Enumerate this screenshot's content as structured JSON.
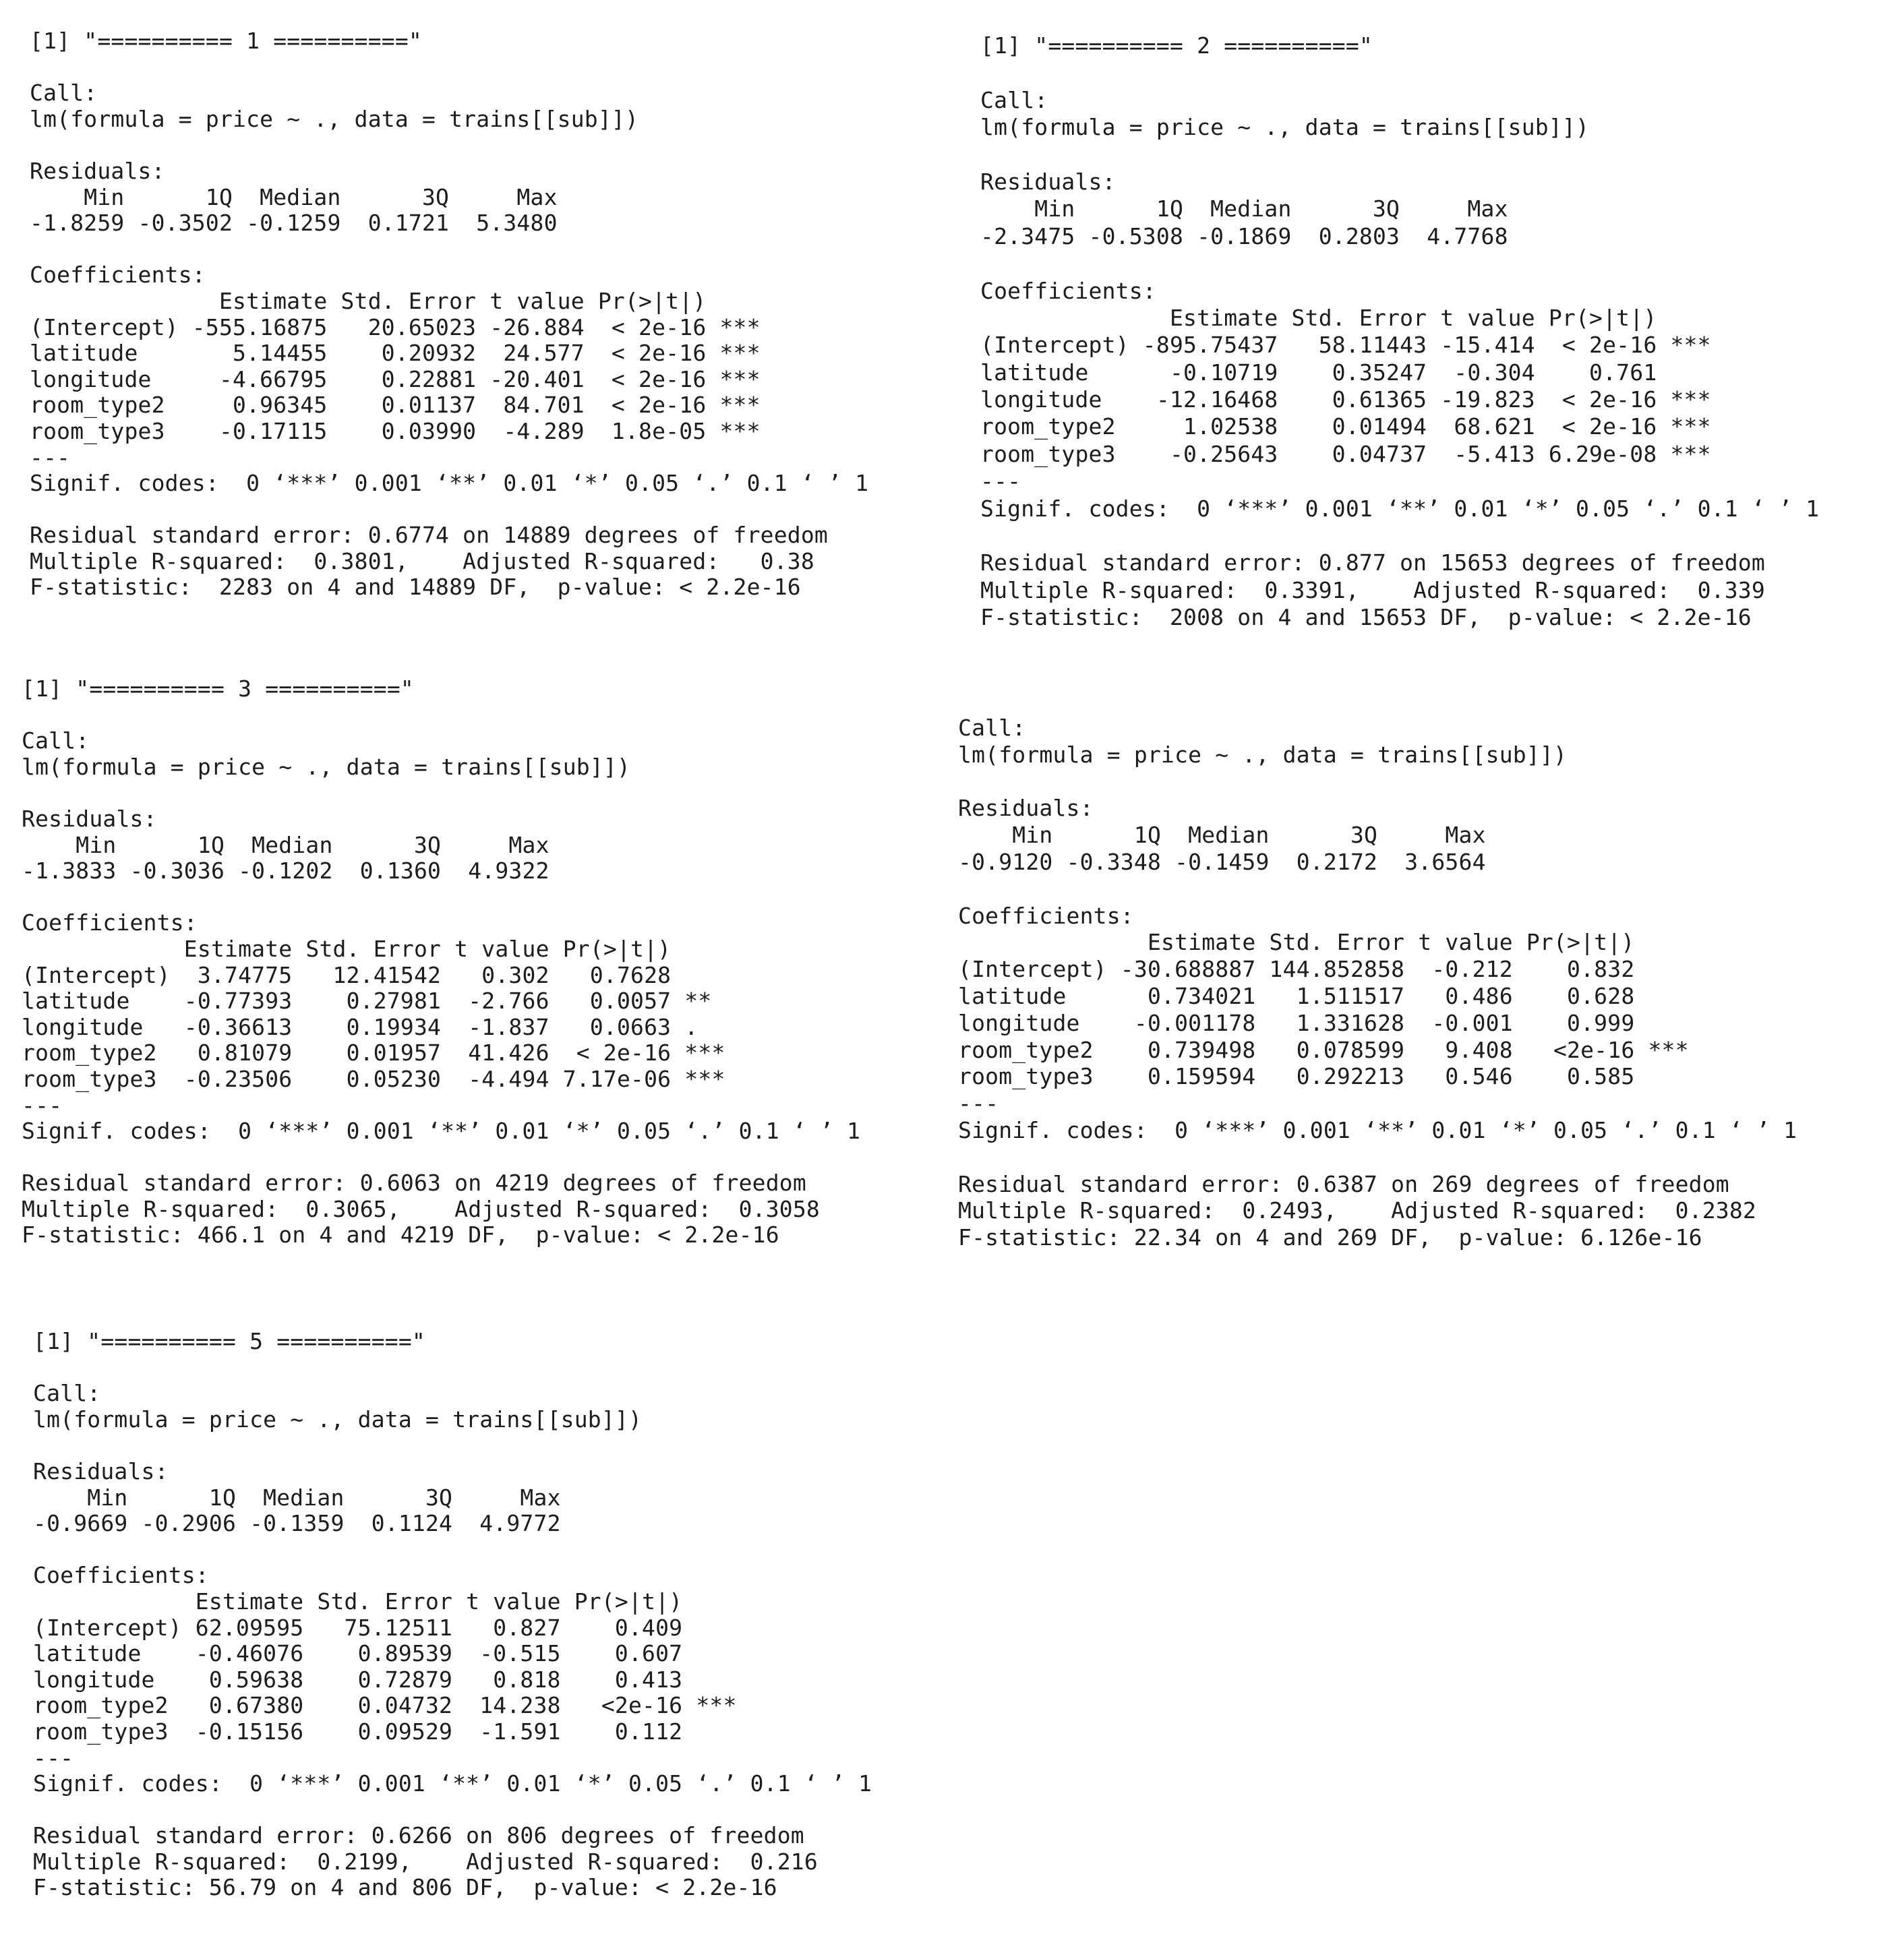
{
  "blocks": [
    {
      "id": "b1",
      "lines": [
        "[1] \"========== 1 ==========\"",
        "",
        "Call:",
        "lm(formula = price ~ ., data = trains[[sub]])",
        "",
        "Residuals:",
        "    Min      1Q  Median      3Q     Max ",
        "-1.8259 -0.3502 -0.1259  0.1721  5.3480 ",
        "",
        "Coefficients:",
        "              Estimate Std. Error t value Pr(>|t|)    ",
        "(Intercept) -555.16875   20.65023 -26.884  < 2e-16 ***",
        "latitude       5.14455    0.20932  24.577  < 2e-16 ***",
        "longitude     -4.66795    0.22881 -20.401  < 2e-16 ***",
        "room_type2     0.96345    0.01137  84.701  < 2e-16 ***",
        "room_type3    -0.17115    0.03990  -4.289  1.8e-05 ***",
        "---",
        "Signif. codes:  0 ‘***’ 0.001 ‘**’ 0.01 ‘*’ 0.05 ‘.’ 0.1 ‘ ’ 1",
        "",
        "Residual standard error: 0.6774 on 14889 degrees of freedom",
        "Multiple R-squared:  0.3801,\tAdjusted R-squared:   0.38 ",
        "F-statistic:  2283 on 4 and 14889 DF,  p-value: < 2.2e-16"
      ]
    },
    {
      "id": "b2",
      "lines": [
        "[1] \"========== 2 ==========\"",
        "",
        "Call:",
        "lm(formula = price ~ ., data = trains[[sub]])",
        "",
        "Residuals:",
        "    Min      1Q  Median      3Q     Max ",
        "-2.3475 -0.5308 -0.1869  0.2803  4.7768 ",
        "",
        "Coefficients:",
        "              Estimate Std. Error t value Pr(>|t|)    ",
        "(Intercept) -895.75437   58.11443 -15.414  < 2e-16 ***",
        "latitude      -0.10719    0.35247  -0.304    0.761    ",
        "longitude    -12.16468    0.61365 -19.823  < 2e-16 ***",
        "room_type2     1.02538    0.01494  68.621  < 2e-16 ***",
        "room_type3    -0.25643    0.04737  -5.413 6.29e-08 ***",
        "---",
        "Signif. codes:  0 ‘***’ 0.001 ‘**’ 0.01 ‘*’ 0.05 ‘.’ 0.1 ‘ ’ 1",
        "",
        "Residual standard error: 0.877 on 15653 degrees of freedom",
        "Multiple R-squared:  0.3391,\tAdjusted R-squared:  0.339 ",
        "F-statistic:  2008 on 4 and 15653 DF,  p-value: < 2.2e-16"
      ]
    },
    {
      "id": "b3",
      "lines": [
        "[1] \"========== 3 ==========\"",
        "",
        "Call:",
        "lm(formula = price ~ ., data = trains[[sub]])",
        "",
        "Residuals:",
        "    Min      1Q  Median      3Q     Max ",
        "-1.3833 -0.3036 -0.1202  0.1360  4.9322 ",
        "",
        "Coefficients:",
        "            Estimate Std. Error t value Pr(>|t|)    ",
        "(Intercept)  3.74775   12.41542   0.302   0.7628    ",
        "latitude    -0.77393    0.27981  -2.766   0.0057 ** ",
        "longitude   -0.36613    0.19934  -1.837   0.0663 .  ",
        "room_type2   0.81079    0.01957  41.426  < 2e-16 ***",
        "room_type3  -0.23506    0.05230  -4.494 7.17e-06 ***",
        "---",
        "Signif. codes:  0 ‘***’ 0.001 ‘**’ 0.01 ‘*’ 0.05 ‘.’ 0.1 ‘ ’ 1",
        "",
        "Residual standard error: 0.6063 on 4219 degrees of freedom",
        "Multiple R-squared:  0.3065,\tAdjusted R-squared:  0.3058 ",
        "F-statistic: 466.1 on 4 and 4219 DF,  p-value: < 2.2e-16"
      ]
    },
    {
      "id": "b4",
      "lines": [
        "Call:",
        "lm(formula = price ~ ., data = trains[[sub]])",
        "",
        "Residuals:",
        "    Min      1Q  Median      3Q     Max ",
        "-0.9120 -0.3348 -0.1459  0.2172  3.6564 ",
        "",
        "Coefficients:",
        "              Estimate Std. Error t value Pr(>|t|)    ",
        "(Intercept) -30.688887 144.852858  -0.212    0.832    ",
        "latitude      0.734021   1.511517   0.486    0.628    ",
        "longitude    -0.001178   1.331628  -0.001    0.999    ",
        "room_type2    0.739498   0.078599   9.408   <2e-16 ***",
        "room_type3    0.159594   0.292213   0.546    0.585    ",
        "---",
        "Signif. codes:  0 ‘***’ 0.001 ‘**’ 0.01 ‘*’ 0.05 ‘.’ 0.1 ‘ ’ 1",
        "",
        "Residual standard error: 0.6387 on 269 degrees of freedom",
        "Multiple R-squared:  0.2493,\tAdjusted R-squared:  0.2382 ",
        "F-statistic: 22.34 on 4 and 269 DF,  p-value: 6.126e-16"
      ]
    },
    {
      "id": "b5",
      "lines": [
        "[1] \"========== 5 ==========\"",
        "",
        "Call:",
        "lm(formula = price ~ ., data = trains[[sub]])",
        "",
        "Residuals:",
        "    Min      1Q  Median      3Q     Max ",
        "-0.9669 -0.2906 -0.1359  0.1124  4.9772 ",
        "",
        "Coefficients:",
        "            Estimate Std. Error t value Pr(>|t|)    ",
        "(Intercept) 62.09595   75.12511   0.827    0.409    ",
        "latitude    -0.46076    0.89539  -0.515    0.607    ",
        "longitude    0.59638    0.72879   0.818    0.413    ",
        "room_type2   0.67380    0.04732  14.238   <2e-16 ***",
        "room_type3  -0.15156    0.09529  -1.591    0.112    ",
        "---",
        "Signif. codes:  0 ‘***’ 0.001 ‘**’ 0.01 ‘*’ 0.05 ‘.’ 0.1 ‘ ’ 1",
        "",
        "Residual standard error: 0.6266 on 806 degrees of freedom",
        "Multiple R-squared:  0.2199,\tAdjusted R-squared:  0.216 ",
        "F-statistic: 56.79 on 4 and 806 DF,  p-value: < 2.2e-16"
      ]
    }
  ]
}
